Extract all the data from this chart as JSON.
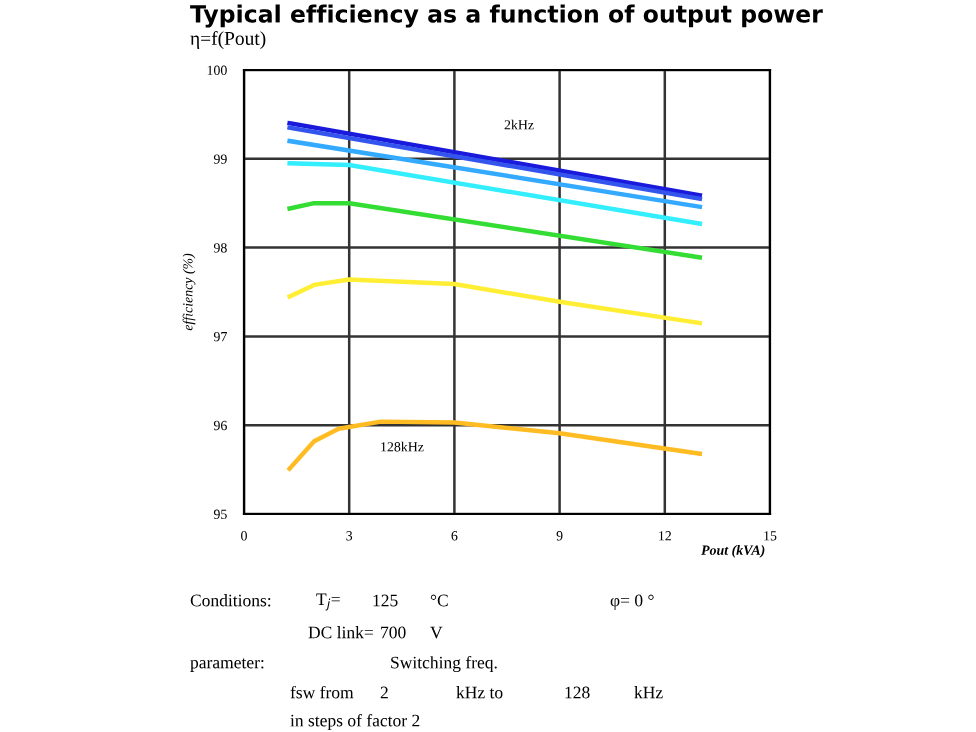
{
  "chart_data": {
    "type": "line",
    "title": "Typical efficiency as a function of output power",
    "subtitle": "η=f(Pout)",
    "ylabel": "efficiency (%)",
    "xlabel": "Pout (kVA)",
    "xlim": [
      0,
      15
    ],
    "xticks": [
      0,
      3,
      6,
      9,
      12,
      15
    ],
    "ylim": [
      95,
      100
    ],
    "yticks": [
      95,
      96,
      97,
      98,
      99,
      100
    ],
    "grid": true,
    "marker": "none",
    "line_style": "solid",
    "series": [
      {
        "color": "#1a1adc",
        "x": [
          1.3,
          13.0
        ],
        "values": [
          99.4,
          98.59
        ]
      },
      {
        "color": "#3355ee",
        "x": [
          1.3,
          13.0
        ],
        "values": [
          99.35,
          98.55
        ]
      },
      {
        "color": "#33aaff",
        "x": [
          1.3,
          13.0
        ],
        "values": [
          99.2,
          98.46
        ]
      },
      {
        "color": "#33eeff",
        "x": [
          1.3,
          3.0,
          13.0
        ],
        "values": [
          98.95,
          98.93,
          98.27
        ]
      },
      {
        "color": "#33dd33",
        "x": [
          1.3,
          2.0,
          3.0,
          13.0
        ],
        "values": [
          98.44,
          98.5,
          98.5,
          97.89
        ]
      },
      {
        "color": "#ffee33",
        "x": [
          1.3,
          2.0,
          3.0,
          6.0,
          9.0,
          13.0
        ],
        "values": [
          97.45,
          97.58,
          97.64,
          97.59,
          97.39,
          97.15
        ]
      },
      {
        "color": "#ffbb22",
        "x": [
          1.3,
          2.0,
          2.7,
          3.9,
          6.0,
          9.0,
          13.0
        ],
        "values": [
          95.51,
          95.82,
          95.96,
          96.04,
          96.03,
          95.91,
          95.68
        ]
      }
    ],
    "annotations": [
      "2kHz",
      "128kHz",
      "Conditions:",
      "T$_{j}$=",
      "125",
      "°C",
      "φ= 0 °",
      "DC link=",
      "700",
      "V",
      "parameter:",
      "Switching freq.",
      "fsw from",
      "2",
      "kHz to",
      "128",
      "kHz",
      "in steps of factor 2"
    ]
  }
}
